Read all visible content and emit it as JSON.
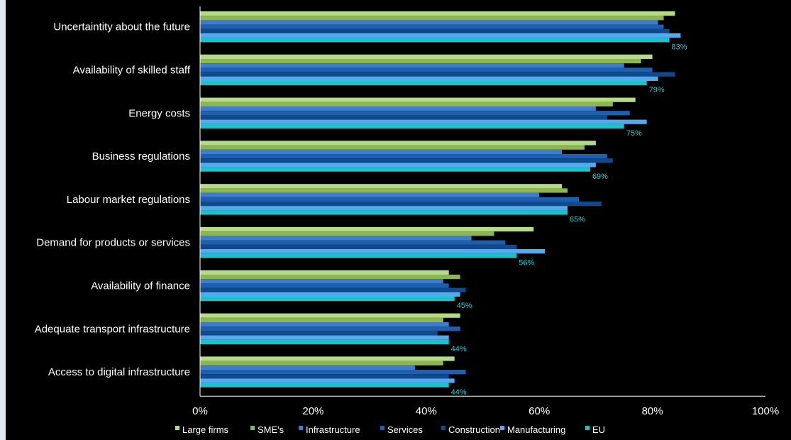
{
  "chart_data": {
    "type": "bar",
    "orientation": "horizontal",
    "categories": [
      "Uncertaintity about the future",
      "Availability of skilled staff",
      "Energy costs",
      "Business regulations",
      "Labour market regulations",
      "Demand for products or services",
      "Availability of finance",
      "Adequate transport infrastructure",
      "Access to digital infrastructure"
    ],
    "series": [
      {
        "name": "Large firms",
        "color": "#b5db8a",
        "values": [
          84,
          80,
          77,
          70,
          64,
          59,
          44,
          46,
          45
        ]
      },
      {
        "name": "SME's",
        "color": "#8db64e",
        "values": [
          82,
          78,
          73,
          68,
          65,
          52,
          46,
          43,
          43
        ]
      },
      {
        "name": "Infrastructure",
        "color": "#3f7ccc",
        "values": [
          81,
          75,
          70,
          64,
          60,
          48,
          43,
          44,
          38
        ]
      },
      {
        "name": "Services",
        "color": "#1f5faf",
        "values": [
          82,
          80,
          76,
          72,
          67,
          54,
          44,
          46,
          47
        ]
      },
      {
        "name": "Construction",
        "color": "#104a8a",
        "values": [
          83,
          84,
          72,
          73,
          71,
          56,
          47,
          42,
          44
        ]
      },
      {
        "name": "Manufacturing",
        "color": "#55aaee",
        "values": [
          85,
          81,
          79,
          70,
          65,
          61,
          46,
          44,
          45
        ]
      },
      {
        "name": "EU",
        "color": "#19c3cc",
        "values": [
          83,
          79,
          75,
          69,
          65,
          56,
          45,
          44,
          44
        ]
      }
    ],
    "data_labels": [
      "83%",
      "79%",
      "75%",
      "69%",
      "65%",
      "56%",
      "45%",
      "44%",
      "44%"
    ],
    "xlim": [
      0,
      100
    ],
    "x_ticks": [
      "0%",
      "20%",
      "40%",
      "60%",
      "80%",
      "100%"
    ],
    "x_tick_values": [
      0,
      20,
      40,
      60,
      80,
      100
    ],
    "legend_position": "bottom",
    "grid": false,
    "background": "#000000",
    "label_color": "#2ec8d0"
  }
}
